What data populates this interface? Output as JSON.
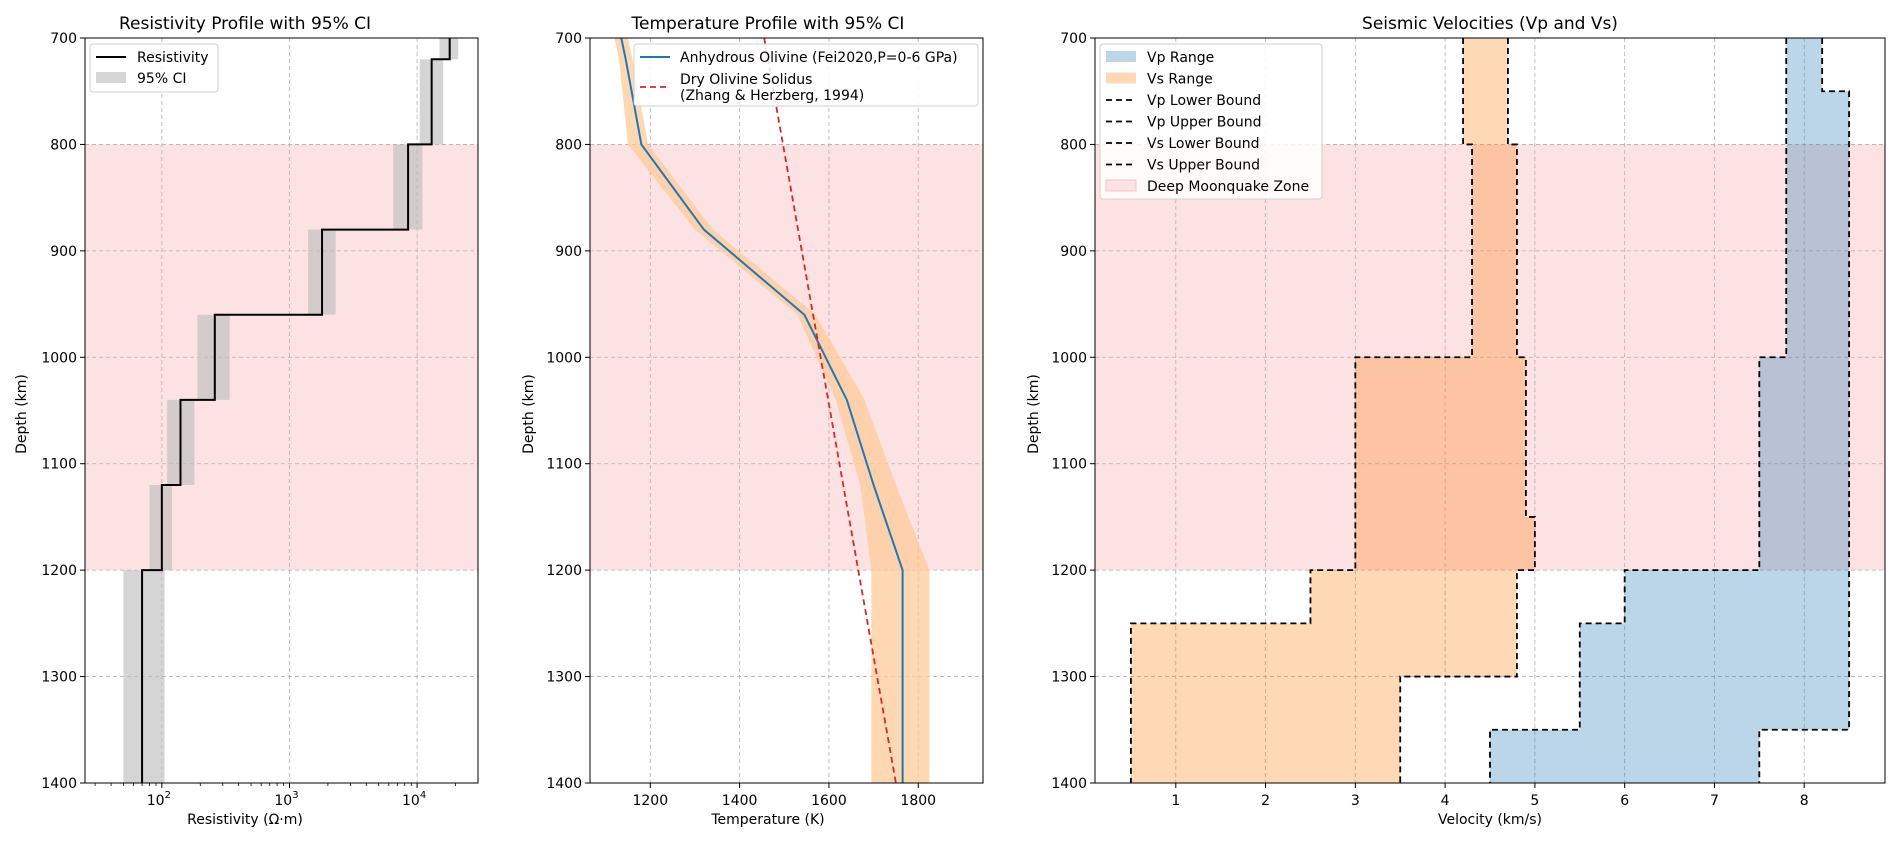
{
  "chart_data": [
    {
      "type": "step",
      "title": "Resistivity Profile with 95% CI",
      "xlabel": "Resistivity (Ω·m)",
      "ylabel": "Depth (km)",
      "xscale": "log",
      "xlim": [
        25,
        30000
      ],
      "ylim": [
        1400,
        700
      ],
      "xticks": [
        {
          "value": 100,
          "base": "10",
          "exp": "2"
        },
        {
          "value": 1000,
          "base": "10",
          "exp": "3"
        },
        {
          "value": 10000,
          "base": "10",
          "exp": "4"
        }
      ],
      "yticks": [
        "700",
        "800",
        "900",
        "1000",
        "1100",
        "1200",
        "1300",
        "1400"
      ],
      "grid": true,
      "shaded_zone": {
        "name": "Deep Moonquake Zone",
        "range": [
          800,
          1200
        ],
        "color": "#fde2e4"
      },
      "layers": [
        {
          "top": 700,
          "bottom": 720,
          "value": 18000,
          "ci": [
            15000,
            21000
          ]
        },
        {
          "top": 720,
          "bottom": 800,
          "value": 13000,
          "ci": [
            10500,
            16000
          ]
        },
        {
          "top": 800,
          "bottom": 880,
          "value": 8500,
          "ci": [
            6500,
            11000
          ]
        },
        {
          "top": 880,
          "bottom": 960,
          "value": 1800,
          "ci": [
            1400,
            2300
          ]
        },
        {
          "top": 960,
          "bottom": 1040,
          "value": 260,
          "ci": [
            190,
            340
          ]
        },
        {
          "top": 1040,
          "bottom": 1120,
          "value": 140,
          "ci": [
            110,
            180
          ]
        },
        {
          "top": 1120,
          "bottom": 1200,
          "value": 100,
          "ci": [
            80,
            120
          ]
        },
        {
          "top": 1200,
          "bottom": 1400,
          "value": 70,
          "ci": [
            50,
            105
          ]
        }
      ],
      "legend": {
        "position": "top-left",
        "items": [
          "Resistivity",
          "95% CI"
        ]
      },
      "colors": {
        "line": "#000000",
        "ci": "#bfbfbf"
      }
    },
    {
      "type": "line",
      "title": "Temperature Profile with 95% CI",
      "xlabel": "Temperature (K)",
      "ylabel": "Depth (km)",
      "xlim": [
        1065,
        1945
      ],
      "ylim": [
        1400,
        700
      ],
      "xticks": [
        "1200",
        "1400",
        "1600",
        "1800"
      ],
      "yticks": [
        "700",
        "800",
        "900",
        "1000",
        "1100",
        "1200",
        "1300",
        "1400"
      ],
      "grid": true,
      "shaded_zone": {
        "name": "Deep Moonquake Zone",
        "range": [
          800,
          1200
        ],
        "color": "#fde2e4"
      },
      "series": [
        {
          "name": "Anhydrous Olivine (Fei2020,P=0-6 GPa)",
          "color": "#1f77b4",
          "depth": [
            700,
            720,
            800,
            880,
            960,
            1040,
            1120,
            1200,
            1400
          ],
          "temperature": [
            1135,
            1145,
            1180,
            1320,
            1545,
            1640,
            1700,
            1765,
            1765
          ],
          "ci_low": [
            1120,
            1130,
            1150,
            1300,
            1530,
            1615,
            1670,
            1695,
            1695
          ],
          "ci_high": [
            1150,
            1160,
            1195,
            1340,
            1570,
            1680,
            1750,
            1825,
            1825
          ]
        },
        {
          "name": "Dry Olivine Solidus\n(Zhang & Herzberg, 1994)",
          "color": "#d62728",
          "style": "dashed",
          "depth": [
            700,
            1400
          ],
          "temperature": [
            1455,
            1750
          ]
        }
      ],
      "legend": {
        "position": "top-right",
        "items": [
          "Anhydrous Olivine (Fei2020,P=0-6 GPa)",
          "Dry Olivine Solidus",
          "(Zhang & Herzberg, 1994)"
        ]
      },
      "colors": {
        "ci": "#fdc999"
      }
    },
    {
      "type": "area",
      "title": "Seismic Velocities (Vp and Vs)",
      "xlabel": "Velocity (km/s)",
      "ylabel": "Depth (km)",
      "xlim": [
        0.1,
        8.9
      ],
      "ylim": [
        1400,
        700
      ],
      "xticks": [
        "1",
        "2",
        "3",
        "4",
        "5",
        "6",
        "7",
        "8"
      ],
      "yticks": [
        "700",
        "800",
        "900",
        "1000",
        "1100",
        "1200",
        "1300",
        "1400"
      ],
      "grid": true,
      "shaded_zone": {
        "name": "Deep Moonquake Zone",
        "range": [
          800,
          1200
        ],
        "color": "#fde2e4"
      },
      "vp_layers": [
        {
          "top": 700,
          "bottom": 750,
          "lower": 7.8,
          "upper": 8.2
        },
        {
          "top": 750,
          "bottom": 1000,
          "lower": 7.8,
          "upper": 8.5
        },
        {
          "top": 1000,
          "bottom": 1200,
          "lower": 7.5,
          "upper": 8.5
        },
        {
          "top": 1200,
          "bottom": 1250,
          "lower": 6.0,
          "upper": 8.5
        },
        {
          "top": 1250,
          "bottom": 1350,
          "lower": 5.5,
          "upper": 8.5
        },
        {
          "top": 1350,
          "bottom": 1400,
          "lower": 4.5,
          "upper": 7.5
        }
      ],
      "vs_layers": [
        {
          "top": 700,
          "bottom": 800,
          "lower": 4.2,
          "upper": 4.7
        },
        {
          "top": 800,
          "bottom": 1000,
          "lower": 4.3,
          "upper": 4.8
        },
        {
          "top": 1000,
          "bottom": 1150,
          "lower": 3.0,
          "upper": 4.9
        },
        {
          "top": 1150,
          "bottom": 1200,
          "lower": 3.0,
          "upper": 5.0
        },
        {
          "top": 1200,
          "bottom": 1250,
          "lower": 2.5,
          "upper": 4.8
        },
        {
          "top": 1250,
          "bottom": 1300,
          "lower": 0.5,
          "upper": 4.8
        },
        {
          "top": 1300,
          "bottom": 1400,
          "lower": 0.5,
          "upper": 3.5
        }
      ],
      "legend": {
        "position": "top-left",
        "items": [
          "Vp Range",
          "Vs Range",
          "Vp Lower Bound",
          "Vp Upper Bound",
          "Vs Lower Bound",
          "Vs Upper Bound",
          "Deep Moonquake Zone"
        ]
      },
      "colors": {
        "vp": "#b9d6ea",
        "vs": "#fdd8b2",
        "overlap_vs": "#fbbf9f",
        "overlap_vp": "#c9c2d5",
        "bound": "#000000"
      }
    }
  ]
}
